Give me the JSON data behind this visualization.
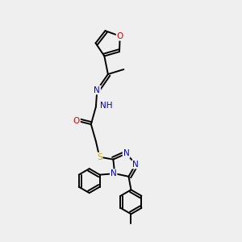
{
  "background_color": "#efefef",
  "atom_colors": {
    "C": "#000000",
    "N": "#0000cc",
    "O": "#dd0000",
    "S": "#ccaa00",
    "H": "#008888"
  },
  "bond_lw": 1.4,
  "font_size": 7.5
}
